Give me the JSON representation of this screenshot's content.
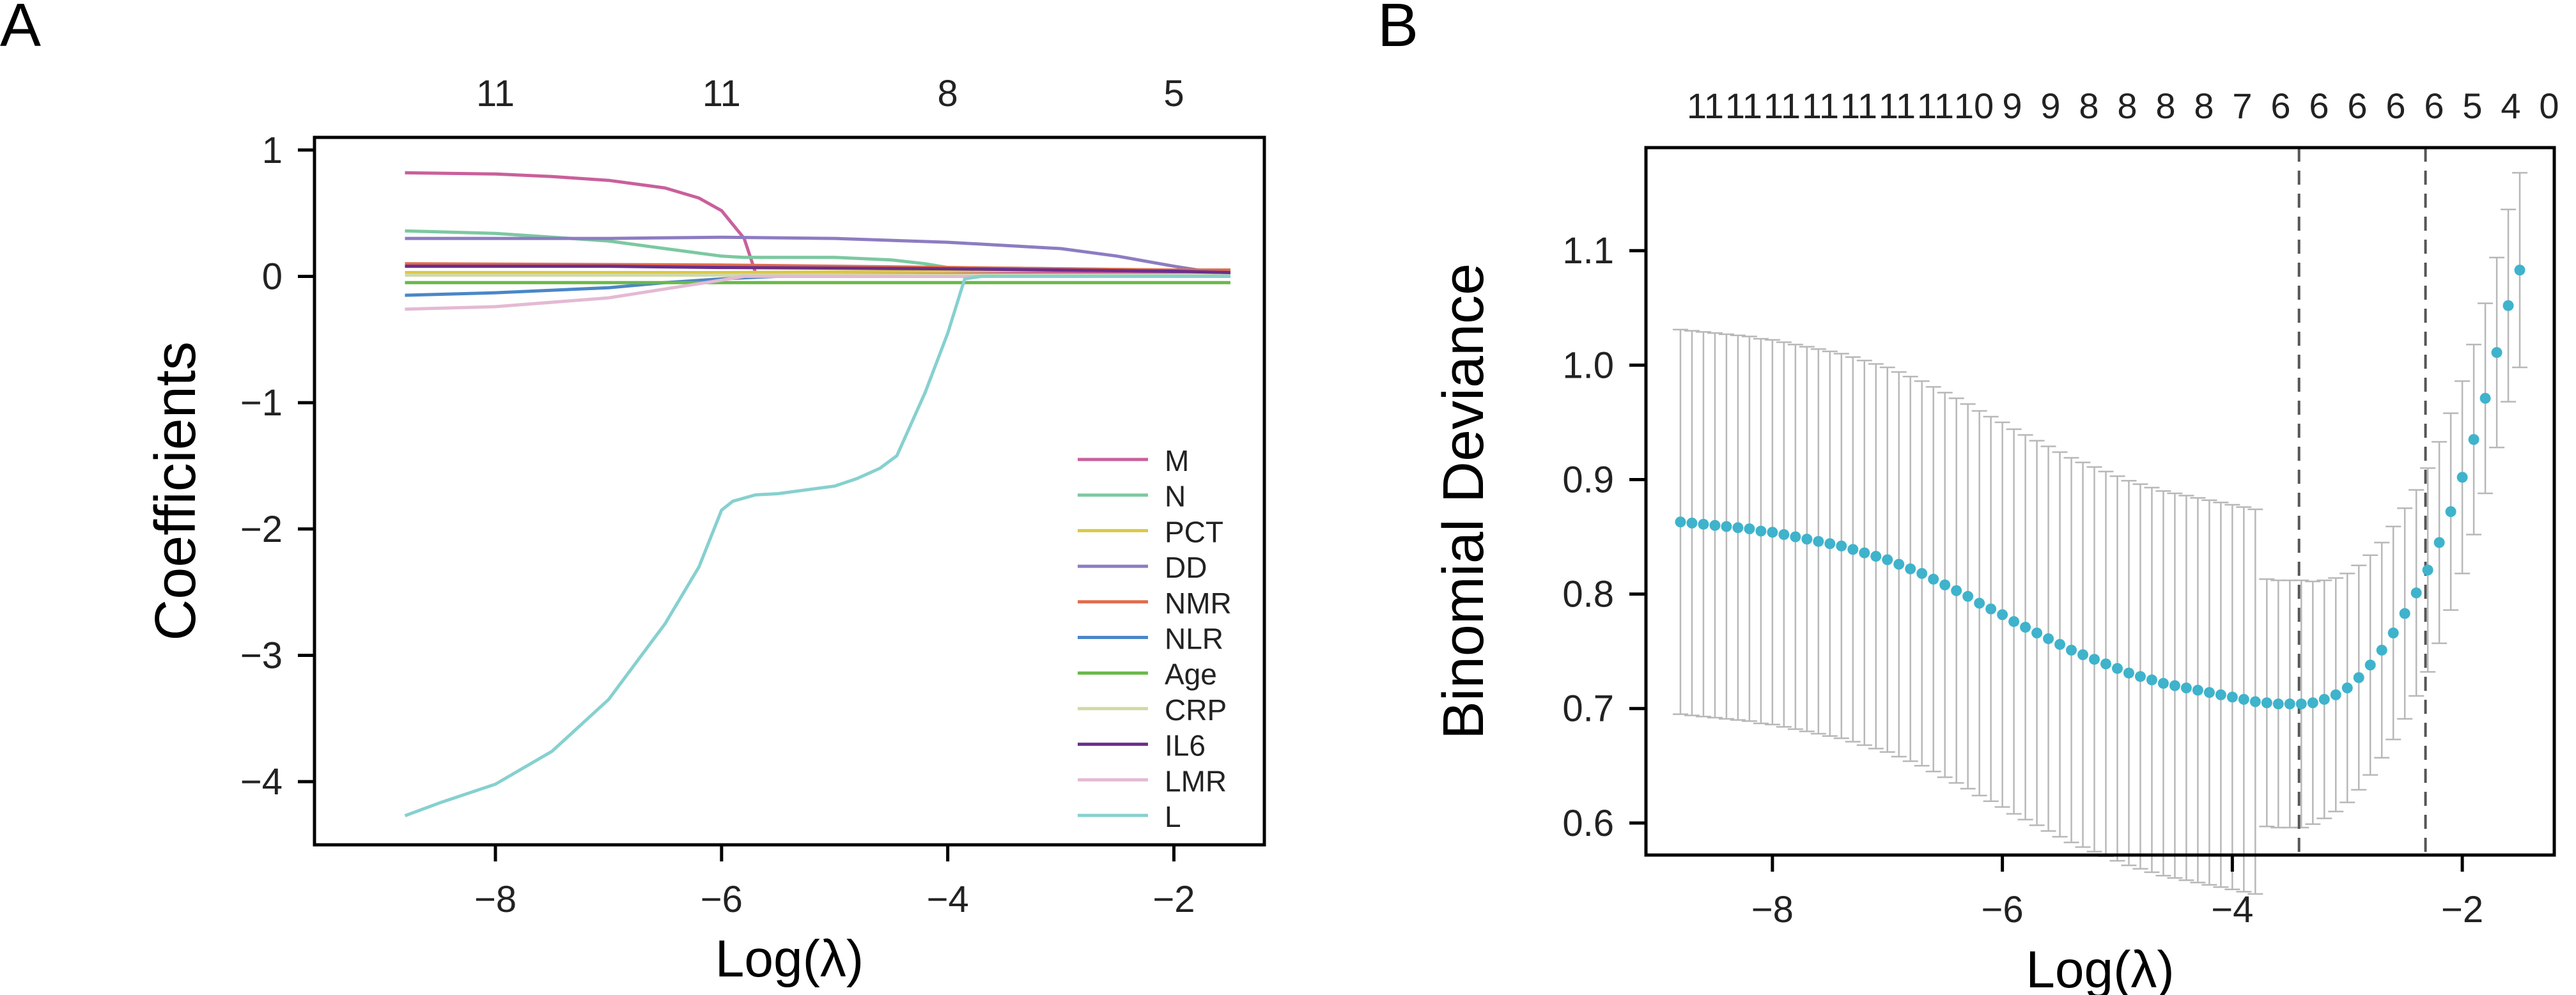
{
  "figure": {
    "panel_a_label": "A",
    "panel_b_label": "B"
  },
  "chart_data": [
    {
      "type": "line",
      "panel": "A",
      "title": "",
      "xlabel": "Log(λ)",
      "ylabel": "Coefficients",
      "xlim": [
        -9.6,
        -1.2
      ],
      "ylim": [
        -4.5,
        1.1
      ],
      "xticks": [
        -8,
        -6,
        -4,
        -2
      ],
      "xtick_labels": [
        "−8",
        "−6",
        "−4",
        "−2"
      ],
      "yticks": [
        1,
        0,
        -1,
        -2,
        -3,
        -4
      ],
      "ytick_labels": [
        "1",
        "0",
        "−1",
        "−2",
        "−3",
        "−4"
      ],
      "top_axis": {
        "positions": [
          -8,
          -6,
          -4,
          -2
        ],
        "labels": [
          "11",
          "11",
          "8",
          "5"
        ]
      },
      "grid": false,
      "legend_position": "bottom-right",
      "series": [
        {
          "name": "M",
          "color": "#c9609b",
          "x": [
            -8.8,
            -8,
            -7.5,
            -7,
            -6.5,
            -6.2,
            -6.0,
            -5.8,
            -5.7,
            -5,
            -4,
            -3,
            -2,
            -1.5
          ],
          "y": [
            0.82,
            0.81,
            0.79,
            0.76,
            0.7,
            0.62,
            0.52,
            0.3,
            0.03,
            0.03,
            0.03,
            0.03,
            0.03,
            0.03
          ]
        },
        {
          "name": "N",
          "color": "#7cc8a0",
          "x": [
            -8.8,
            -8,
            -7,
            -6.5,
            -6,
            -5.8,
            -5,
            -4.5,
            -4.2,
            -4,
            -3,
            -2,
            -1.5
          ],
          "y": [
            0.36,
            0.34,
            0.28,
            0.22,
            0.16,
            0.15,
            0.15,
            0.13,
            0.1,
            0.07,
            0.06,
            0.05,
            0.05
          ]
        },
        {
          "name": "PCT",
          "color": "#d9c84a",
          "x": [
            -8.8,
            -6,
            -4,
            -3,
            -2,
            -1.5
          ],
          "y": [
            0.03,
            0.03,
            0.04,
            0.05,
            0.04,
            0.02
          ]
        },
        {
          "name": "DD",
          "color": "#8e7cc3",
          "x": [
            -8.8,
            -7,
            -6,
            -5,
            -4,
            -3,
            -2.5,
            -2,
            -1.5
          ],
          "y": [
            0.3,
            0.3,
            0.31,
            0.3,
            0.27,
            0.22,
            0.16,
            0.08,
            0.01
          ]
        },
        {
          "name": "NMR",
          "color": "#e06c4c",
          "x": [
            -8.8,
            -6,
            -4,
            -2,
            -1.5
          ],
          "y": [
            0.1,
            0.09,
            0.07,
            0.05,
            0.05
          ]
        },
        {
          "name": "NLR",
          "color": "#4a86c8",
          "x": [
            -8.8,
            -8,
            -7,
            -6.5,
            -6,
            -5.5,
            -4,
            -2,
            -1.5
          ],
          "y": [
            -0.15,
            -0.13,
            -0.09,
            -0.05,
            -0.02,
            0.0,
            0.0,
            0.0,
            0.0
          ]
        },
        {
          "name": "Age",
          "color": "#6ab84a",
          "x": [
            -8.8,
            -6,
            -4,
            -2,
            -1.5
          ],
          "y": [
            -0.05,
            -0.05,
            -0.05,
            -0.05,
            -0.05
          ]
        },
        {
          "name": "CRP",
          "color": "#cfd9a8",
          "x": [
            -8.8,
            -6,
            -4,
            -2,
            -1.5
          ],
          "y": [
            0.01,
            0.01,
            0.01,
            0.01,
            0.01
          ]
        },
        {
          "name": "IL6",
          "color": "#6a2f8a",
          "x": [
            -8.8,
            -7,
            -6,
            -4,
            -2,
            -1.5
          ],
          "y": [
            0.08,
            0.08,
            0.07,
            0.06,
            0.04,
            0.03
          ]
        },
        {
          "name": "LMR",
          "color": "#e3b9d3",
          "x": [
            -8.8,
            -8,
            -7,
            -6.5,
            -6,
            -5.8,
            -4,
            -2,
            -1.5
          ],
          "y": [
            -0.26,
            -0.24,
            -0.17,
            -0.1,
            -0.03,
            0.0,
            0.0,
            0.0,
            0.0
          ]
        },
        {
          "name": "L",
          "color": "#86d0d0",
          "x": [
            -8.8,
            -8.5,
            -8,
            -7.5,
            -7,
            -6.5,
            -6.2,
            -6.0,
            -5.9,
            -5.7,
            -5.5,
            -5.0,
            -4.8,
            -4.6,
            -4.45,
            -4.2,
            -4.0,
            -3.85,
            -3.7,
            -3.0,
            -2.0,
            -1.5
          ],
          "y": [
            -4.27,
            -4.17,
            -4.02,
            -3.76,
            -3.35,
            -2.75,
            -2.3,
            -1.85,
            -1.78,
            -1.73,
            -1.72,
            -1.66,
            -1.6,
            -1.52,
            -1.42,
            -0.92,
            -0.45,
            -0.02,
            0.0,
            0.0,
            0.0,
            0.0
          ]
        }
      ]
    },
    {
      "type": "scatter",
      "panel": "B",
      "title": "",
      "xlabel": "Log(λ)",
      "ylabel": "Binomial Deviance",
      "xlim": [
        -9.1,
        -1.2
      ],
      "ylim": [
        0.572,
        1.19
      ],
      "xticks": [
        -8,
        -6,
        -4,
        -2
      ],
      "xtick_labels": [
        "−8",
        "−6",
        "−4",
        "−2"
      ],
      "yticks": [
        0.6,
        0.7,
        0.8,
        0.9,
        1.0,
        1.1
      ],
      "ytick_labels": [
        "0.6",
        "0.7",
        "0.8",
        "0.9",
        "1.0",
        "1.1"
      ],
      "grid": false,
      "top_axis": {
        "labels": [
          "11",
          "11",
          "11",
          "11",
          "11",
          "11",
          "11",
          "10",
          "9",
          "9",
          "8",
          "8",
          "8",
          "8",
          "7",
          "6",
          "6",
          "6",
          "6",
          "6",
          "5",
          "4",
          "0"
        ]
      },
      "reference_lines_x": [
        -3.42,
        -2.32
      ],
      "point_color": "#3fb3cc",
      "errorbar_color": "#b8b8b8",
      "x": [
        -8.8,
        -8.7,
        -8.6,
        -8.5,
        -8.4,
        -8.3,
        -8.2,
        -8.1,
        -8.0,
        -7.9,
        -7.8,
        -7.7,
        -7.6,
        -7.5,
        -7.4,
        -7.3,
        -7.2,
        -7.1,
        -7.0,
        -6.9,
        -6.8,
        -6.7,
        -6.6,
        -6.5,
        -6.4,
        -6.3,
        -6.2,
        -6.1,
        -6.0,
        -5.9,
        -5.8,
        -5.7,
        -5.6,
        -5.5,
        -5.4,
        -5.3,
        -5.2,
        -5.1,
        -5.0,
        -4.9,
        -4.8,
        -4.7,
        -4.6,
        -4.5,
        -4.4,
        -4.3,
        -4.2,
        -4.1,
        -4.0,
        -3.9,
        -3.8,
        -3.7,
        -3.6,
        -3.5,
        -3.4,
        -3.3,
        -3.2,
        -3.1,
        -3.0,
        -2.9,
        -2.8,
        -2.7,
        -2.6,
        -2.5,
        -2.4,
        -2.3,
        -2.2,
        -2.1,
        -2.0,
        -1.9,
        -1.8,
        -1.7,
        -1.6,
        -1.5
      ],
      "y": [
        0.863,
        0.862,
        0.861,
        0.86,
        0.859,
        0.858,
        0.857,
        0.855,
        0.854,
        0.852,
        0.85,
        0.848,
        0.846,
        0.844,
        0.842,
        0.839,
        0.836,
        0.833,
        0.83,
        0.826,
        0.822,
        0.818,
        0.813,
        0.808,
        0.803,
        0.798,
        0.792,
        0.787,
        0.782,
        0.776,
        0.771,
        0.766,
        0.761,
        0.756,
        0.751,
        0.747,
        0.743,
        0.739,
        0.735,
        0.731,
        0.728,
        0.725,
        0.722,
        0.72,
        0.718,
        0.716,
        0.714,
        0.712,
        0.71,
        0.708,
        0.706,
        0.705,
        0.704,
        0.704,
        0.704,
        0.705,
        0.708,
        0.712,
        0.718,
        0.727,
        0.738,
        0.751,
        0.766,
        0.783,
        0.801,
        0.821,
        0.845,
        0.872,
        0.902,
        0.935,
        0.971,
        1.011,
        1.052,
        1.083
      ],
      "err": [
        0.168,
        0.168,
        0.168,
        0.168,
        0.168,
        0.168,
        0.168,
        0.168,
        0.168,
        0.168,
        0.168,
        0.168,
        0.168,
        0.168,
        0.168,
        0.168,
        0.168,
        0.168,
        0.168,
        0.168,
        0.168,
        0.168,
        0.168,
        0.168,
        0.168,
        0.168,
        0.168,
        0.168,
        0.168,
        0.168,
        0.168,
        0.168,
        0.168,
        0.168,
        0.168,
        0.168,
        0.168,
        0.168,
        0.168,
        0.168,
        0.168,
        0.168,
        0.168,
        0.168,
        0.168,
        0.168,
        0.168,
        0.168,
        0.168,
        0.168,
        0.168,
        0.108,
        0.108,
        0.108,
        0.108,
        0.106,
        0.104,
        0.102,
        0.1,
        0.098,
        0.096,
        0.094,
        0.093,
        0.092,
        0.09,
        0.089,
        0.088,
        0.086,
        0.084,
        0.083,
        0.083,
        0.083,
        0.084,
        0.085
      ]
    }
  ]
}
